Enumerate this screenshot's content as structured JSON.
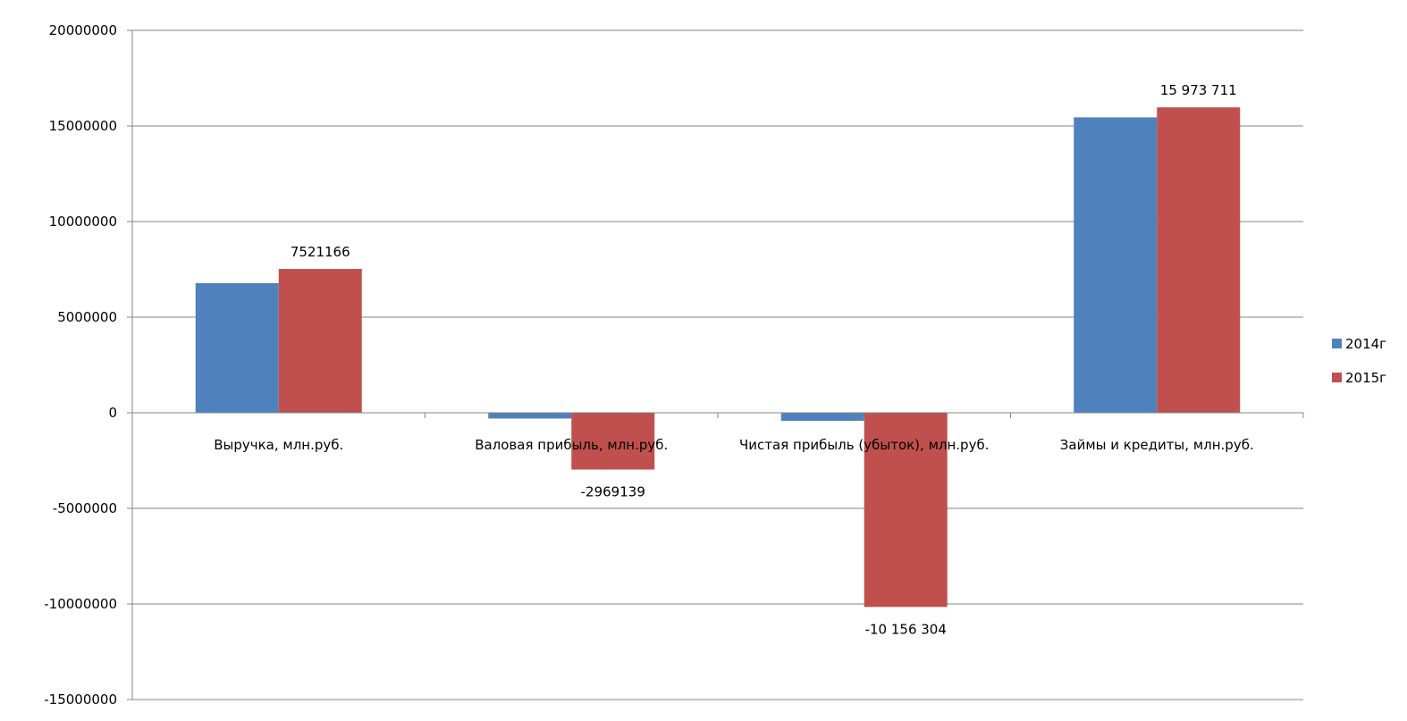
{
  "chart_data": {
    "type": "bar",
    "categories": [
      "Выручка, млн.руб.",
      "Валовая прибыль, млн.руб.",
      "Чистая прибыль (убыток), млн.руб.",
      "Займы и кредиты, млн.руб."
    ],
    "series": [
      {
        "name": "2014г",
        "color": "#4f81bd",
        "values": [
          6780000,
          -300000,
          -420000,
          15450000
        ]
      },
      {
        "name": "2015г",
        "color": "#c0504d",
        "values": [
          7521166,
          -2969139,
          -10156304,
          15973711
        ]
      }
    ],
    "data_labels": [
      {
        "series": 1,
        "category": 0,
        "text": "7521166"
      },
      {
        "series": 1,
        "category": 1,
        "text": "-2969139"
      },
      {
        "series": 1,
        "category": 2,
        "text": "-10 156 304"
      },
      {
        "series": 1,
        "category": 3,
        "text": "15 973 711"
      }
    ],
    "y_ticks": [
      {
        "value": 20000000,
        "label": "20000000"
      },
      {
        "value": 15000000,
        "label": "15000000"
      },
      {
        "value": 10000000,
        "label": "10000000"
      },
      {
        "value": 5000000,
        "label": "5000000"
      },
      {
        "value": 0,
        "label": "0"
      },
      {
        "value": -5000000,
        "label": "-5000000"
      },
      {
        "value": -10000000,
        "label": "-10000000"
      },
      {
        "value": -15000000,
        "label": "-15000000"
      }
    ],
    "ylim": [
      -15000000,
      20000000
    ],
    "grid": true,
    "legend_position": "right",
    "title": "",
    "xlabel": "",
    "ylabel": ""
  }
}
